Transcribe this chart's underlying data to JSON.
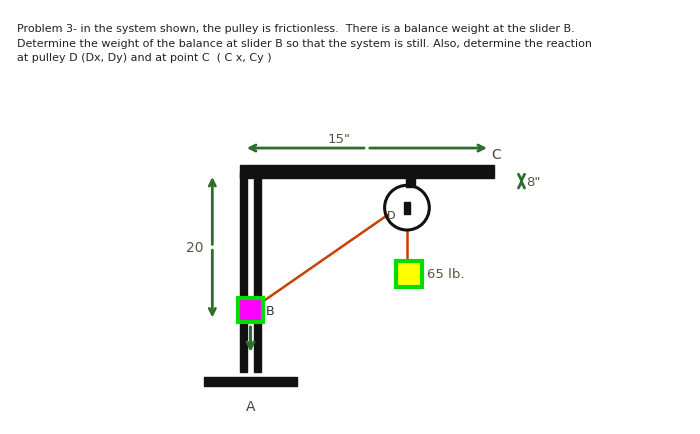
{
  "title_text": "Problem 3- in the system shown, the pulley is frictionless.  There is a balance weight at the slider B.\nDetermine the weight of the balance at slider B so that the system is still. Also, determine the reaction\nat pulley D (Dx, Dy) and at point C  ( C x, Cy )",
  "bg_color": "#ffffff",
  "label_20": "20",
  "label_15": "15\"",
  "label_8": "8\"",
  "label_65": "65 lb.",
  "label_A": "A",
  "label_B": "B",
  "label_C": "C",
  "label_D": "D",
  "struct_color": "#111111",
  "arrow_color": "#2d6e2d",
  "rope_color": "#c84000",
  "weight_green_border": "#00dd00",
  "weight_yellow_fill": "#ffff00",
  "weight_B_green_border": "#00dd00",
  "weight_B_magenta_fill": "#ff00ff",
  "dim_color": "#6b6b3a"
}
